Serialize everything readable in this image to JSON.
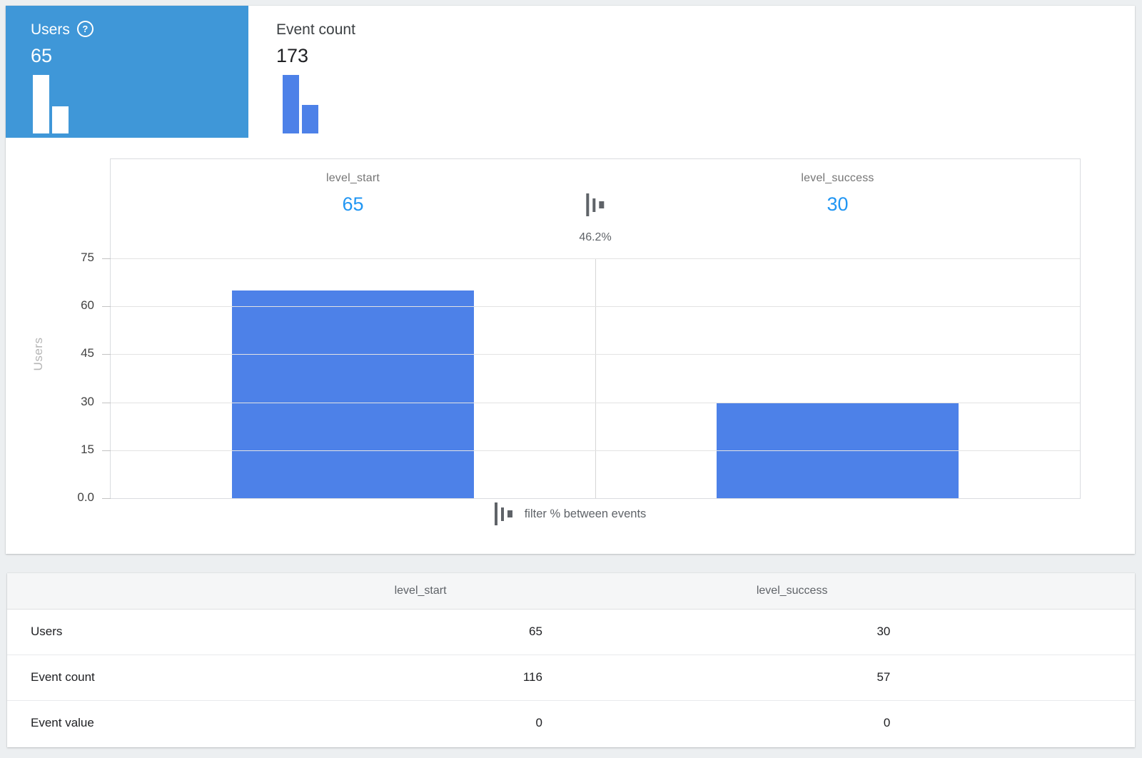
{
  "metric_tabs": [
    {
      "label": "Users",
      "value": "65",
      "selected": true,
      "mini_bars": [
        65,
        30
      ]
    },
    {
      "label": "Event count",
      "value": "173",
      "selected": false,
      "mini_bars": [
        116,
        57
      ]
    }
  ],
  "icons": {
    "help_glyph": "?",
    "filter_icon_name": "bar-filter-icon"
  },
  "chart_data": {
    "type": "bar",
    "title": "",
    "categories": [
      "level_start",
      "level_success"
    ],
    "series": [
      {
        "name": "Users",
        "values": [
          65,
          30
        ]
      }
    ],
    "value_labels": [
      "65",
      "30"
    ],
    "conversion_rate": "46.2%",
    "ylabel": "Users",
    "yticks": [
      75,
      60,
      45,
      30,
      15,
      0
    ],
    "ytick_labels": [
      "75",
      "60",
      "45",
      "30",
      "15",
      "0.0"
    ],
    "ylim": [
      0,
      75
    ],
    "grid": true,
    "legend": "none",
    "footer_note": "filter % between events"
  },
  "table": {
    "columns": [
      "",
      "level_start",
      "level_success"
    ],
    "rows": [
      {
        "label": "Users",
        "values": [
          "65",
          "30"
        ]
      },
      {
        "label": "Event count",
        "values": [
          "116",
          "57"
        ]
      },
      {
        "label": "Event value",
        "values": [
          "0",
          "0"
        ]
      }
    ]
  },
  "colors": {
    "tab_selected_blue": "#3f97d8",
    "bar_blue": "#4d81e8",
    "value_text_blue": "#2196f3",
    "background_gray": "#eceff1"
  }
}
